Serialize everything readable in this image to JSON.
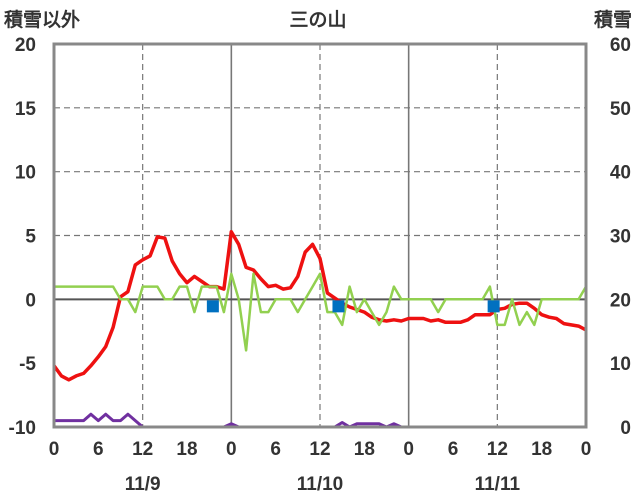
{
  "chart_data": {
    "type": "line",
    "title": "三の山",
    "left_axis_label": "積雪以外",
    "right_axis_label": "積雪",
    "y_left": {
      "min": -10,
      "max": 20,
      "ticks": [
        -10,
        -5,
        0,
        5,
        10,
        15,
        20
      ]
    },
    "y_right": {
      "min": 0,
      "max": 60,
      "ticks": [
        0,
        10,
        20,
        30,
        40,
        50,
        60
      ]
    },
    "x": {
      "min": 0,
      "max": 72,
      "tick_step": 6
    },
    "x_tick_labels": [
      "0",
      "6",
      "12",
      "18",
      "0",
      "6",
      "12",
      "18",
      "0",
      "6",
      "12",
      "18",
      "0"
    ],
    "date_labels": [
      {
        "text": "11/9",
        "x": 12
      },
      {
        "text": "11/10",
        "x": 36
      },
      {
        "text": "11/11",
        "x": 60
      }
    ],
    "series": [
      {
        "color": "#ee1111",
        "axis": "left",
        "values": [
          -5.2,
          -6.0,
          -6.3,
          -6.0,
          -5.8,
          -5.2,
          -4.5,
          -3.7,
          -2.2,
          0.2,
          0.6,
          2.7,
          3.1,
          3.4,
          4.9,
          4.8,
          3.0,
          2.0,
          1.3,
          1.8,
          1.4,
          1.0,
          1.0,
          0.8,
          5.3,
          4.3,
          2.5,
          2.3,
          1.6,
          1.0,
          1.1,
          0.8,
          0.9,
          1.8,
          3.7,
          4.3,
          3.2,
          0.5,
          0.1,
          -0.3,
          -0.6,
          -0.8,
          -1.0,
          -1.4,
          -1.6,
          -1.7,
          -1.6,
          -1.7,
          -1.5,
          -1.5,
          -1.5,
          -1.7,
          -1.6,
          -1.8,
          -1.8,
          -1.8,
          -1.6,
          -1.2,
          -1.2,
          -1.2,
          -0.8,
          -0.7,
          -0.4,
          -0.3,
          -0.3,
          -0.7,
          -1.2,
          -1.4,
          -1.5,
          -1.9,
          -2.0,
          -2.1,
          -2.4
        ]
      },
      {
        "color": "#92d050",
        "axis": "left",
        "values": [
          1,
          1,
          1,
          1,
          1,
          1,
          1,
          1,
          1,
          0,
          0,
          -1,
          1,
          1,
          1,
          0,
          0,
          1,
          1,
          -1,
          1,
          1,
          1,
          -1,
          2,
          0,
          -4,
          2,
          -1,
          -1,
          0,
          0,
          0,
          -1,
          0,
          1,
          2,
          -1,
          -1,
          -2,
          1,
          -1,
          0,
          -1,
          -2,
          -1,
          1,
          0,
          0,
          0,
          0,
          0,
          -1,
          0,
          0,
          0,
          0,
          0,
          0,
          1,
          -2,
          -2,
          0,
          -2,
          -1,
          -2,
          0,
          0,
          0,
          0,
          0,
          0,
          1
        ]
      },
      {
        "color": "#7030a0",
        "axis": "right",
        "values": [
          1,
          1,
          1,
          1,
          1,
          2,
          1,
          2,
          1,
          1,
          2,
          1,
          0,
          0,
          0,
          0,
          0,
          0,
          0,
          0,
          0,
          0,
          0,
          0,
          0.5,
          0,
          0,
          0,
          0,
          0,
          0,
          0,
          0,
          0,
          0,
          0,
          0,
          0,
          0,
          0.7,
          0,
          0.5,
          0.5,
          0.5,
          0.5,
          0,
          0.5,
          0,
          0,
          0,
          0,
          0,
          0,
          0,
          0,
          0,
          0,
          0,
          0,
          0,
          0,
          0,
          0,
          0,
          0,
          0,
          0,
          0,
          0,
          0,
          0,
          0,
          0
        ]
      }
    ],
    "markers": [
      {
        "color": "#0070c0",
        "axis": "left",
        "x": 21.5,
        "y": -0.55
      },
      {
        "color": "#0070c0",
        "axis": "left",
        "x": 38.5,
        "y": -0.55
      },
      {
        "color": "#0070c0",
        "axis": "left",
        "x": 59.5,
        "y": -0.55
      }
    ],
    "grid": {
      "solid_x": [
        24,
        48
      ],
      "dashed_x": [
        12,
        36,
        60
      ],
      "dashed_y": [
        5,
        10,
        15
      ]
    }
  }
}
